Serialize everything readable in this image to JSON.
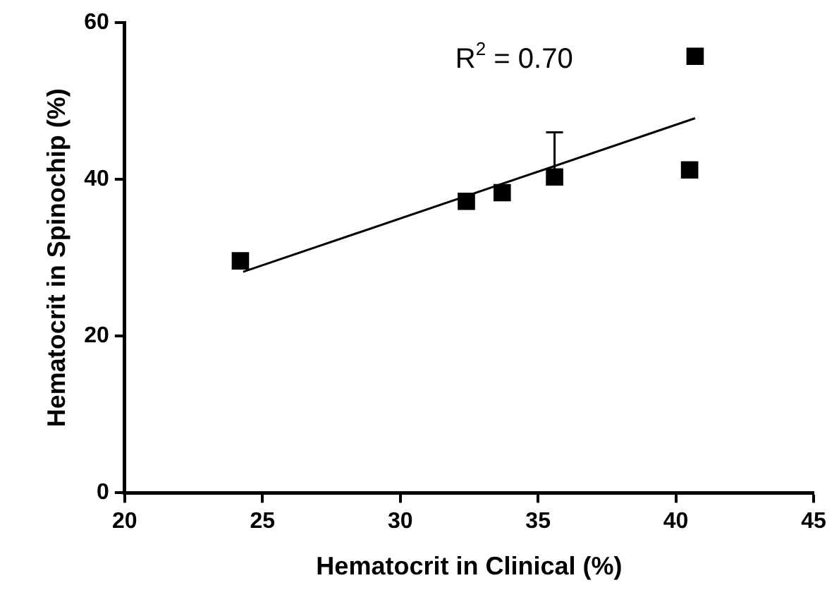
{
  "chart_data": {
    "type": "scatter",
    "xlabel": "Hematocrit in Clinical (%)",
    "ylabel": "Hematocrit in Spinochip (%)",
    "x": [
      24.2,
      32.4,
      33.7,
      35.6,
      40.5,
      40.7
    ],
    "series": [
      {
        "type": "scatter",
        "color": "#000000",
        "values": [
          29.6,
          37.2,
          38.3,
          40.3,
          41.2,
          55.7
        ],
        "errors": [
          null,
          null,
          null,
          [
            40.3,
            46.0
          ],
          null,
          null
        ],
        "marker": "square"
      },
      {
        "type": "line",
        "color": "#000000",
        "x": [
          24.3,
          40.7
        ],
        "values": [
          28.2,
          47.8
        ],
        "marker": "none"
      }
    ],
    "annotations": [
      "R$^{2}$ = 0.70"
    ],
    "xlim": [
      20,
      45
    ],
    "xticks": [
      20,
      25,
      30,
      35,
      40,
      45
    ],
    "ylim": [
      0,
      60
    ],
    "yticks": [
      0,
      20,
      40,
      60
    ],
    "grid": false,
    "legend": false
  }
}
